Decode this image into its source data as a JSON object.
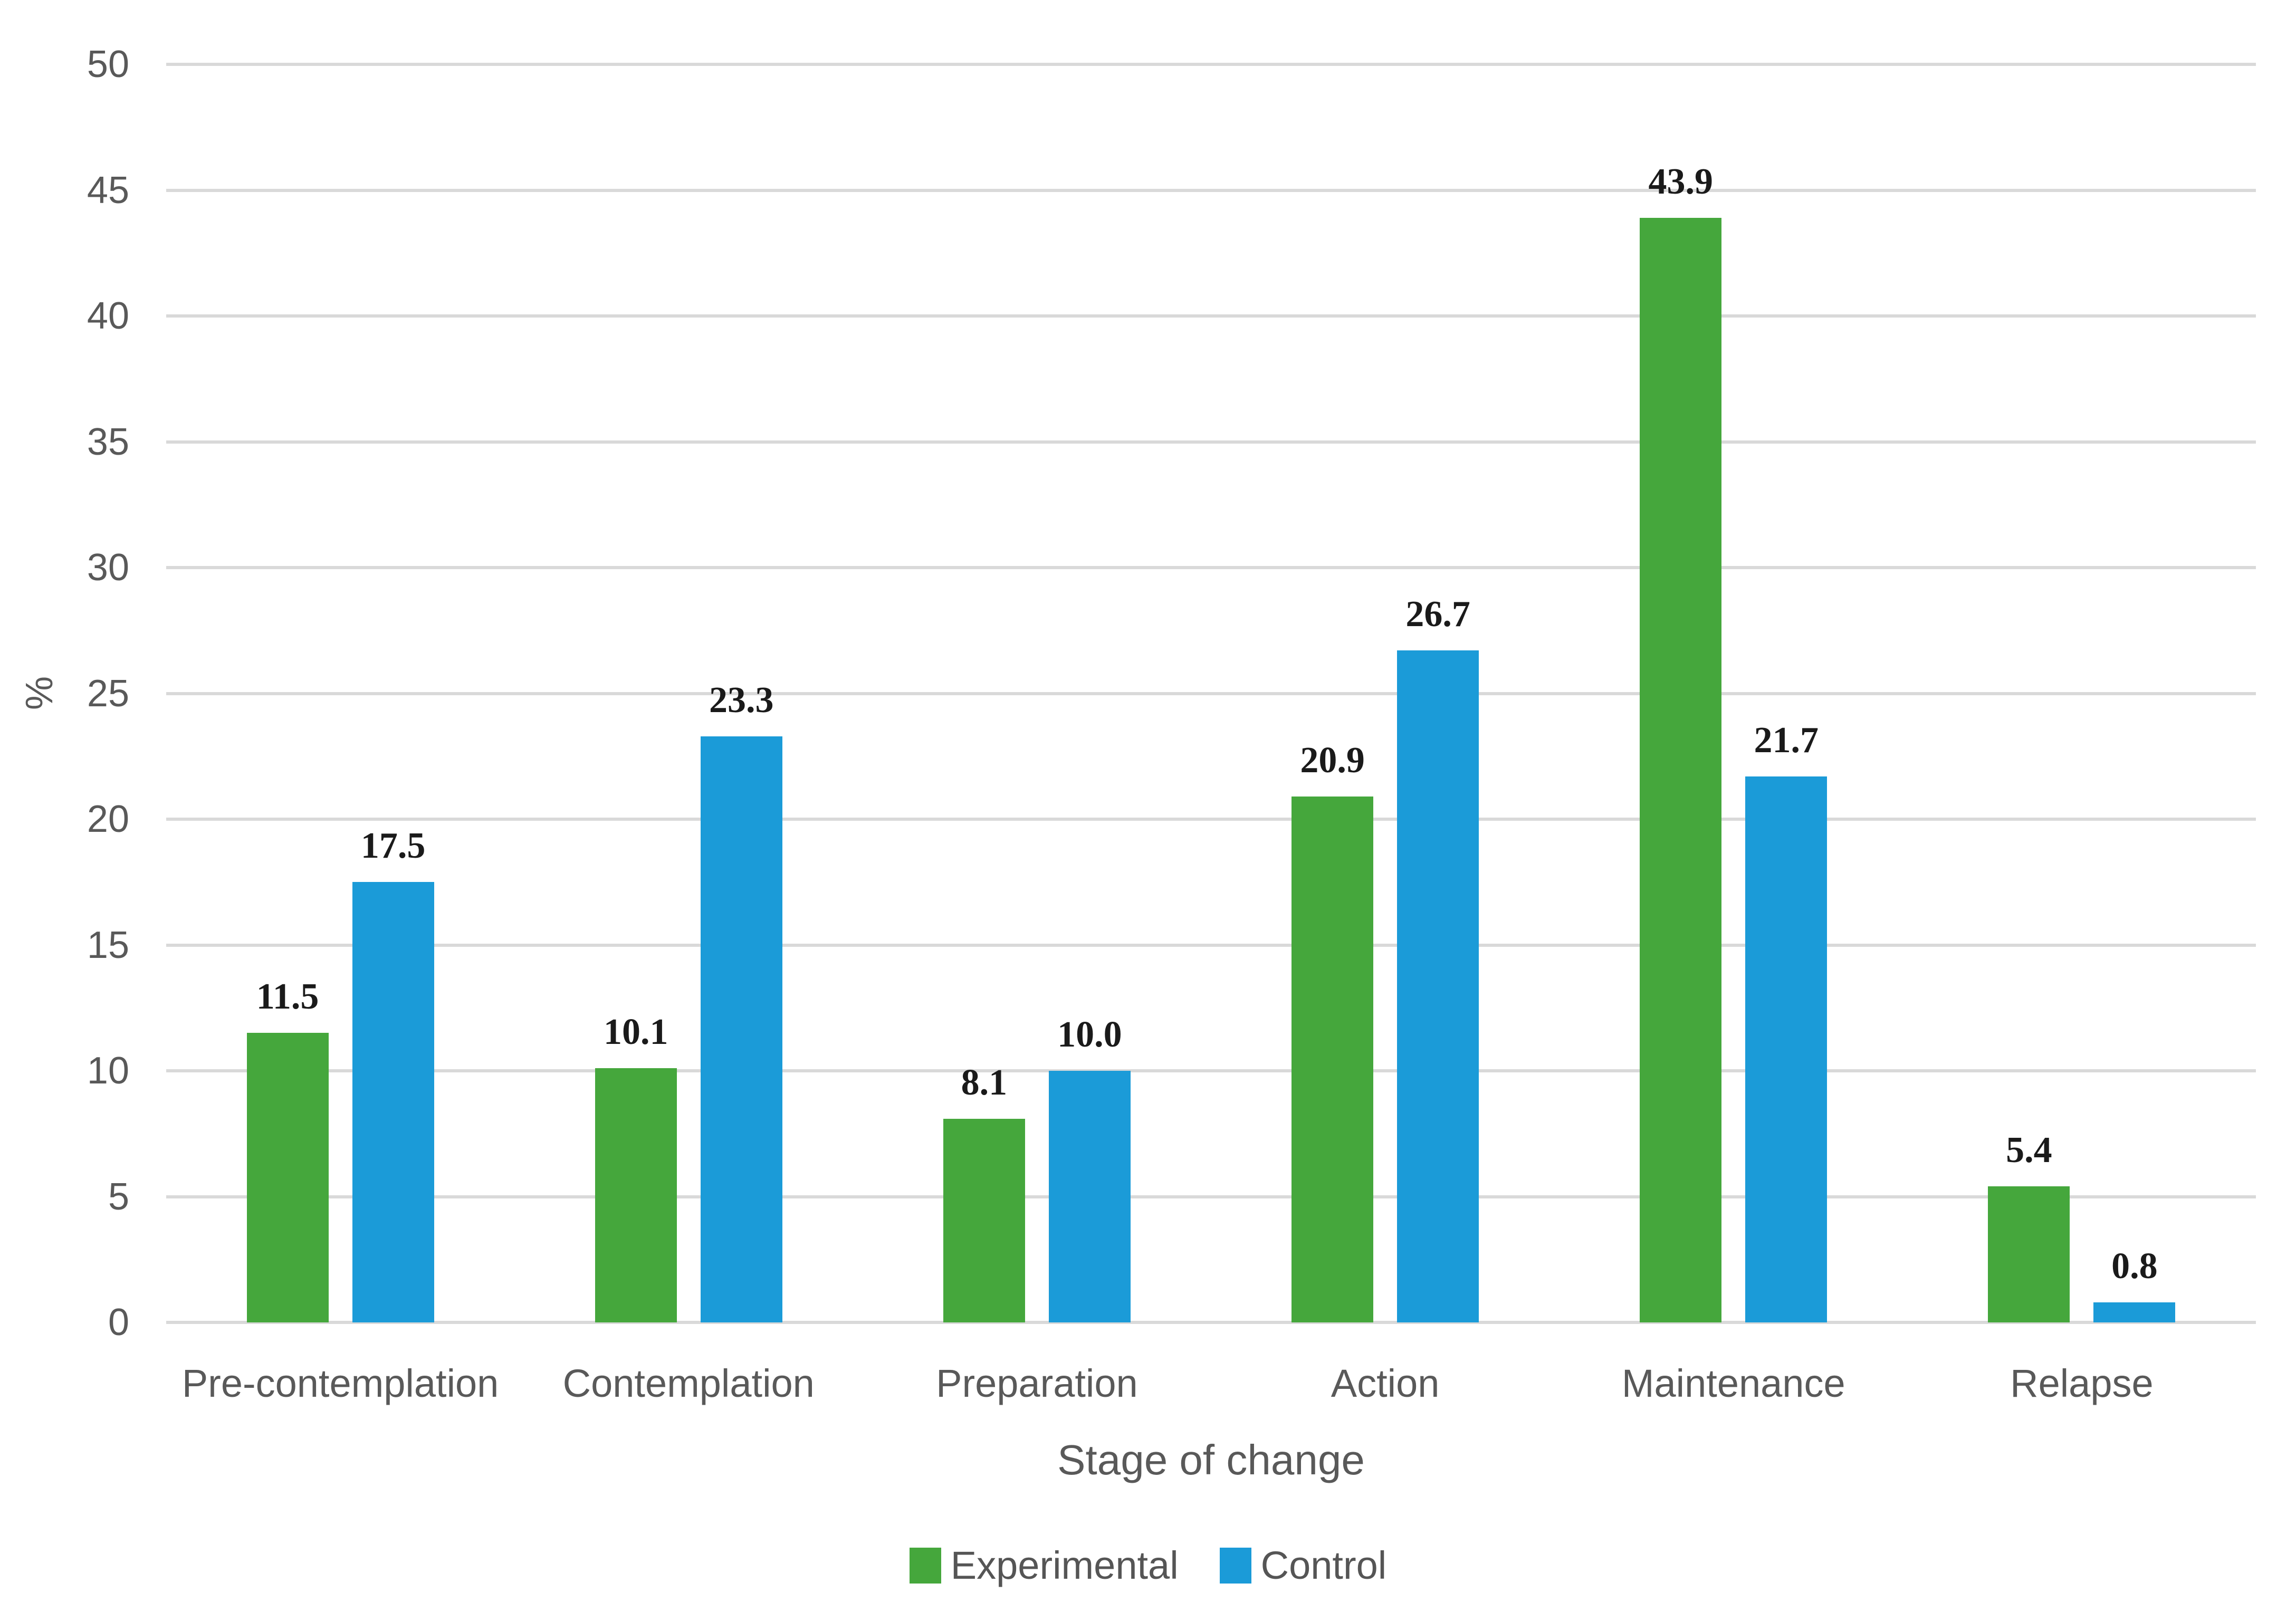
{
  "chart_data": {
    "type": "bar",
    "title": "",
    "categories": [
      "Pre-contemplation",
      "Contemplation",
      "Preparation",
      "Action",
      "Maintenance",
      "Relapse"
    ],
    "series": [
      {
        "name": "Experimental",
        "color": "#45a73c",
        "values": [
          11.5,
          10.1,
          8.1,
          20.9,
          43.9,
          5.4
        ]
      },
      {
        "name": "Control",
        "color": "#1b9bd8",
        "values": [
          17.5,
          23.3,
          10.0,
          26.7,
          21.7,
          0.8
        ]
      }
    ],
    "xlabel": "Stage of change",
    "ylabel": "%",
    "ylim": [
      0,
      50
    ],
    "yticks": [
      0,
      5,
      10,
      15,
      20,
      25,
      30,
      35,
      40,
      45,
      50
    ],
    "grid": true,
    "legend_position": "bottom",
    "value_label_decimals": 1,
    "colors": {
      "gridline": "#d9d9d9",
      "axis_text": "#595959",
      "data_label": "#1a1a1a",
      "legend_text": "#555555",
      "background": "#ffffff"
    }
  }
}
